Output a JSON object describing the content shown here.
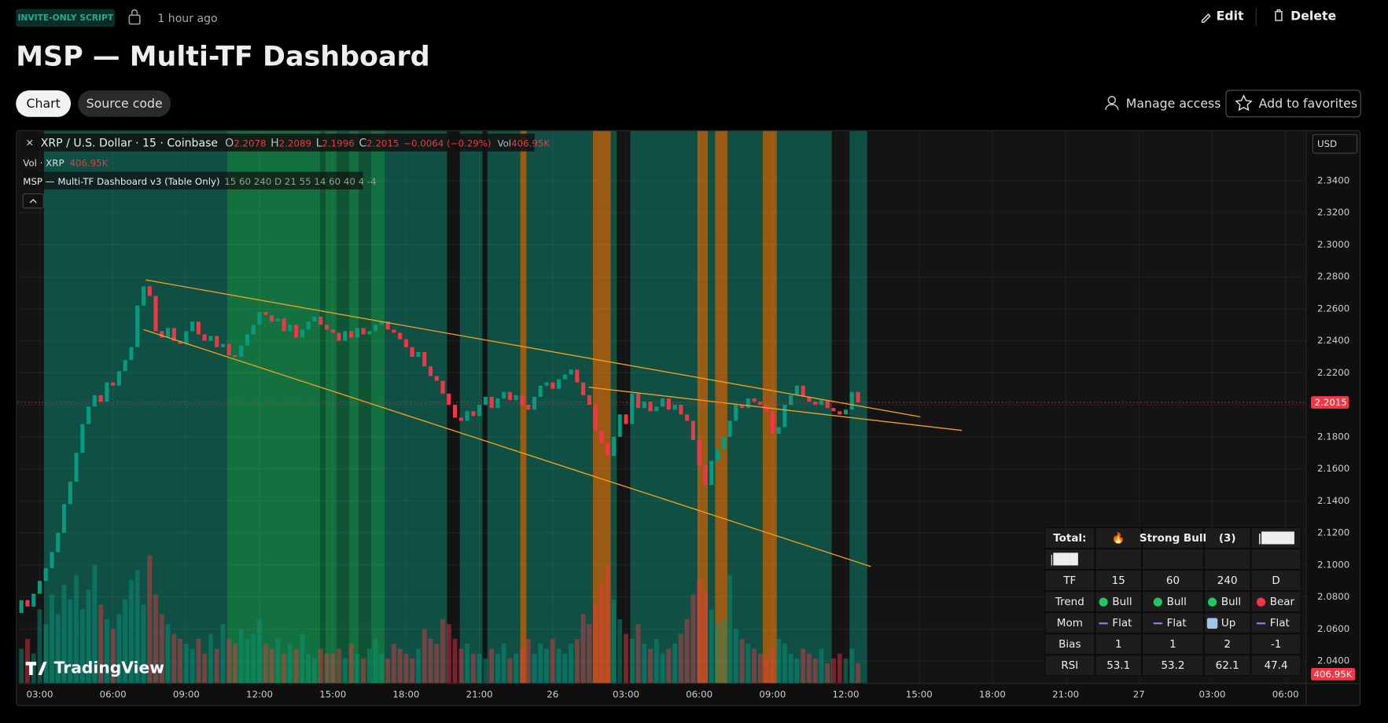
{
  "header": {
    "badge": "INVITE-ONLY SCRIPT",
    "time": "1 hour ago",
    "edit": "Edit",
    "delete": "Delete",
    "title": "MSP — Multi-TF Dashboard"
  },
  "tabs": [
    "Chart",
    "Source code"
  ],
  "actions": [
    "Manage access",
    "Add to favorites"
  ],
  "chart_data": {
    "type": "candlestick",
    "legend": {
      "close_icon": "✕",
      "symbol": "XRP / U.S. Dollar · 15 · Coinbase",
      "ohlc_labels": [
        "O",
        "H",
        "L",
        "C"
      ],
      "open": 2.2078,
      "high": 2.2089,
      "low": 2.1996,
      "close": 2.2015,
      "change": "−0.0064 (−0.29%)",
      "volume_label": "Vol",
      "volume": "406.95K",
      "volume_series": "Vol · XRP",
      "indicator": "MSP — Multi-TF Dashboard v3 (Table Only)",
      "indicator_params": "15 60 240 D 21 55 14 60 40 4 -4"
    },
    "currency": "USD",
    "watermark": "TradingView",
    "up_color": "#089981",
    "down_color": "#f23645",
    "first_open": 2.07,
    "closes": [
      2.078,
      2.074,
      2.082,
      2.09,
      2.098,
      2.108,
      2.12,
      2.138,
      2.152,
      2.17,
      2.188,
      2.199,
      2.206,
      2.202,
      2.214,
      2.212,
      2.221,
      2.228,
      2.236,
      2.262,
      2.274,
      2.268,
      2.246,
      2.242,
      2.248,
      2.24,
      2.238,
      2.246,
      2.252,
      2.244,
      2.24,
      2.243,
      2.236,
      2.238,
      2.231,
      2.23,
      2.237,
      2.244,
      2.25,
      2.258,
      2.256,
      2.252,
      2.254,
      2.246,
      2.25,
      2.242,
      2.247,
      2.252,
      2.255,
      2.25,
      2.247,
      2.245,
      2.24,
      2.246,
      2.242,
      2.248,
      2.244,
      2.246,
      2.25,
      2.252,
      2.247,
      2.245,
      2.241,
      2.236,
      2.23,
      2.233,
      2.224,
      2.218,
      2.215,
      2.207,
      2.2,
      2.192,
      2.19,
      2.196,
      2.193,
      2.2,
      2.205,
      2.198,
      2.204,
      2.208,
      2.203,
      2.206,
      2.2,
      2.197,
      2.205,
      2.212,
      2.214,
      2.21,
      2.216,
      2.219,
      2.222,
      2.214,
      2.206,
      2.2,
      2.184,
      2.176,
      2.168,
      2.18,
      2.194,
      2.188,
      2.207,
      2.198,
      2.202,
      2.196,
      2.199,
      2.204,
      2.197,
      2.2,
      2.194,
      2.19,
      2.178,
      2.162,
      2.15,
      2.165,
      2.172,
      2.18,
      2.19,
      2.2,
      2.198,
      2.204,
      2.202,
      2.2,
      2.196,
      2.182,
      2.186,
      2.2,
      2.206,
      2.212,
      2.205,
      2.202,
      2.2,
      2.203,
      2.198,
      2.196,
      2.194,
      2.197,
      2.208,
      2.2015
    ],
    "volumes": [
      700,
      900,
      600,
      1500,
      1200,
      1800,
      1400,
      2000,
      1700,
      2200,
      1500,
      1900,
      2400,
      1600,
      1300,
      1100,
      1400,
      1700,
      2100,
      2300,
      1600,
      2600,
      1800,
      1400,
      1200,
      1000,
      900,
      800,
      700,
      900,
      600,
      1000,
      700,
      1200,
      900,
      800,
      1100,
      900,
      1000,
      1300,
      800,
      700,
      900,
      600,
      800,
      700,
      1000,
      600,
      500,
      700,
      600,
      600,
      700,
      500,
      800,
      600,
      500,
      700,
      900,
      600,
      500,
      800,
      700,
      600,
      500,
      700,
      1100,
      900,
      800,
      1300,
      1200,
      900,
      700,
      800,
      600,
      600,
      500,
      700,
      600,
      800,
      500,
      600,
      700,
      900,
      600,
      800,
      700,
      900,
      700,
      600,
      800,
      900,
      1400,
      1200,
      1600,
      2000,
      2400,
      1700,
      1300,
      1000,
      900,
      1200,
      800,
      700,
      900,
      600,
      700,
      800,
      1000,
      1300,
      1800,
      2100,
      1900,
      1500,
      1200,
      1300,
      2200,
      1100,
      900,
      800,
      700,
      600,
      500,
      700,
      900,
      800,
      600,
      500,
      700,
      600,
      500,
      700,
      400,
      500,
      600,
      500,
      700,
      406.95
    ],
    "xlim": [
      -0.6,
      210.3
    ],
    "xticks": [
      {
        "value": 3,
        "label": "03:00"
      },
      {
        "value": 15,
        "label": "06:00"
      },
      {
        "value": 27,
        "label": "09:00"
      },
      {
        "value": 39,
        "label": "12:00"
      },
      {
        "value": 51,
        "label": "15:00"
      },
      {
        "value": 63,
        "label": "18:00"
      },
      {
        "value": 75,
        "label": "21:00"
      },
      {
        "value": 87,
        "label": "26"
      },
      {
        "value": 99,
        "label": "03:00"
      },
      {
        "value": 111,
        "label": "06:00"
      },
      {
        "value": 123,
        "label": "09:00"
      },
      {
        "value": 135,
        "label": "12:00"
      },
      {
        "value": 147,
        "label": "15:00"
      },
      {
        "value": 159,
        "label": "18:00"
      },
      {
        "value": 171,
        "label": "21:00"
      },
      {
        "value": 183,
        "label": "27"
      },
      {
        "value": 195,
        "label": "03:00"
      },
      {
        "value": 207,
        "label": "06:00"
      }
    ],
    "ylim": [
      2.0262,
      2.371
    ],
    "yticks": [
      {
        "value": 2.04,
        "label": "2.0400"
      },
      {
        "value": 2.06,
        "label": "2.0600"
      },
      {
        "value": 2.08,
        "label": "2.0800"
      },
      {
        "value": 2.1,
        "label": "2.1000"
      },
      {
        "value": 2.12,
        "label": "2.1200"
      },
      {
        "value": 2.14,
        "label": "2.1400"
      },
      {
        "value": 2.16,
        "label": "2.1600"
      },
      {
        "value": 2.18,
        "label": "2.1800"
      },
      {
        "value": 2.2,
        "label": "2.2000"
      },
      {
        "value": 2.22,
        "label": "2.2200"
      },
      {
        "value": 2.24,
        "label": "2.2400"
      },
      {
        "value": 2.26,
        "label": "2.2600"
      },
      {
        "value": 2.28,
        "label": "2.2800"
      },
      {
        "value": 2.3,
        "label": "2.3000"
      },
      {
        "value": 2.32,
        "label": "2.3200"
      },
      {
        "value": 2.34,
        "label": "2.3400"
      }
    ],
    "grid": true,
    "trendline_color": "#f0a020",
    "trendlines": [
      {
        "x": [
          20.4,
          147.2
        ],
        "y": [
          2.278,
          2.1925
        ]
      },
      {
        "x": [
          20.0,
          139.1
        ],
        "y": [
          2.247,
          2.099
        ]
      },
      {
        "x": [
          92.9,
          154.0
        ],
        "y": [
          2.211,
          2.184
        ]
      }
    ],
    "zones": [
      {
        "x": [
          3.7,
          138.5
        ],
        "color": "#0f4f44"
      },
      {
        "x": [
          33.7,
          59.5
        ],
        "color": "#13713f"
      },
      {
        "x": [
          48.9,
          49.8
        ],
        "color": "#0f5535"
      },
      {
        "x": [
          51.6,
          53.7
        ],
        "color": "#0f5535"
      },
      {
        "x": [
          55.2,
          57.3
        ],
        "color": "#0f5535"
      },
      {
        "x": [
          69.7,
          71.8
        ],
        "color": "#141414"
      },
      {
        "x": [
          75.5,
          76.3
        ],
        "color": "#141414"
      },
      {
        "x": [
          81.7,
          82.7
        ],
        "color": "#9a5a12"
      },
      {
        "x": [
          93.6,
          96.5
        ],
        "color": "#9a5a12"
      },
      {
        "x": [
          97.5,
          99.7
        ],
        "color": "#141414"
      },
      {
        "x": [
          110.7,
          112.4
        ],
        "color": "#9a5a12"
      },
      {
        "x": [
          113.6,
          115.6
        ],
        "color": "#9a5a12"
      },
      {
        "x": [
          121.4,
          123.7
        ],
        "color": "#9a5a12"
      },
      {
        "x": [
          132.7,
          135.6
        ],
        "color": "#141414"
      }
    ]
  },
  "dashboard": {
    "rows": [
      [
        "Total:",
        "🔥",
        "Strong Bull",
        "(3)",
        "|████"
      ],
      [
        "|███"
      ],
      [
        "TF",
        "15",
        "60",
        "240",
        "D"
      ],
      [
        "Trend",
        {
          "text": "Bull",
          "icon": "dot",
          "color": "#22c55e"
        },
        {
          "text": "Bull",
          "icon": "dot",
          "color": "#22c55e"
        },
        {
          "text": "Bull",
          "icon": "dot",
          "color": "#22c55e"
        },
        {
          "text": "Bear",
          "icon": "dot",
          "color": "#f23645"
        }
      ],
      [
        "Mom",
        {
          "text": "Flat",
          "icon": "dash",
          "color": "#8c7bea"
        },
        {
          "text": "Flat",
          "icon": "dash",
          "color": "#8c7bea"
        },
        {
          "text": "Up",
          "icon": "box",
          "color": "#9ec4e8"
        },
        {
          "text": "Flat",
          "icon": "dash",
          "color": "#8c7bea"
        }
      ],
      [
        "Bias",
        "1",
        "1",
        "2",
        "-1"
      ],
      [
        "RSI",
        "53.1",
        "53.2",
        "62.1",
        "47.4"
      ]
    ]
  }
}
